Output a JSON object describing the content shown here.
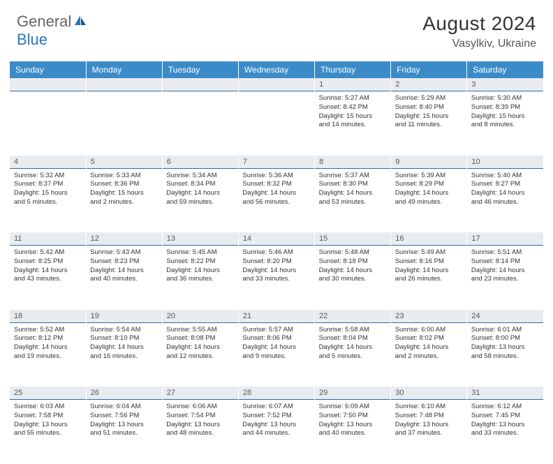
{
  "brand": {
    "part1": "General",
    "part2": "Blue"
  },
  "title": "August 2024",
  "location": "Vasylkiv, Ukraine",
  "colors": {
    "header_bg": "#3b8bc9",
    "daynum_bg": "#e9ecef",
    "border": "#2a6ea8",
    "brand_blue": "#2977b8",
    "text": "#333333"
  },
  "weekdays": [
    "Sunday",
    "Monday",
    "Tuesday",
    "Wednesday",
    "Thursday",
    "Friday",
    "Saturday"
  ],
  "weeks": [
    {
      "nums": [
        "",
        "",
        "",
        "",
        "1",
        "2",
        "3"
      ],
      "cells": [
        null,
        null,
        null,
        null,
        {
          "sunrise": "Sunrise: 5:27 AM",
          "sunset": "Sunset: 8:42 PM",
          "day1": "Daylight: 15 hours",
          "day2": "and 14 minutes."
        },
        {
          "sunrise": "Sunrise: 5:29 AM",
          "sunset": "Sunset: 8:40 PM",
          "day1": "Daylight: 15 hours",
          "day2": "and 11 minutes."
        },
        {
          "sunrise": "Sunrise: 5:30 AM",
          "sunset": "Sunset: 8:39 PM",
          "day1": "Daylight: 15 hours",
          "day2": "and 8 minutes."
        }
      ]
    },
    {
      "nums": [
        "4",
        "5",
        "6",
        "7",
        "8",
        "9",
        "10"
      ],
      "cells": [
        {
          "sunrise": "Sunrise: 5:32 AM",
          "sunset": "Sunset: 8:37 PM",
          "day1": "Daylight: 15 hours",
          "day2": "and 5 minutes."
        },
        {
          "sunrise": "Sunrise: 5:33 AM",
          "sunset": "Sunset: 8:36 PM",
          "day1": "Daylight: 15 hours",
          "day2": "and 2 minutes."
        },
        {
          "sunrise": "Sunrise: 5:34 AM",
          "sunset": "Sunset: 8:34 PM",
          "day1": "Daylight: 14 hours",
          "day2": "and 59 minutes."
        },
        {
          "sunrise": "Sunrise: 5:36 AM",
          "sunset": "Sunset: 8:32 PM",
          "day1": "Daylight: 14 hours",
          "day2": "and 56 minutes."
        },
        {
          "sunrise": "Sunrise: 5:37 AM",
          "sunset": "Sunset: 8:30 PM",
          "day1": "Daylight: 14 hours",
          "day2": "and 53 minutes."
        },
        {
          "sunrise": "Sunrise: 5:39 AM",
          "sunset": "Sunset: 8:29 PM",
          "day1": "Daylight: 14 hours",
          "day2": "and 49 minutes."
        },
        {
          "sunrise": "Sunrise: 5:40 AM",
          "sunset": "Sunset: 8:27 PM",
          "day1": "Daylight: 14 hours",
          "day2": "and 46 minutes."
        }
      ]
    },
    {
      "nums": [
        "11",
        "12",
        "13",
        "14",
        "15",
        "16",
        "17"
      ],
      "cells": [
        {
          "sunrise": "Sunrise: 5:42 AM",
          "sunset": "Sunset: 8:25 PM",
          "day1": "Daylight: 14 hours",
          "day2": "and 43 minutes."
        },
        {
          "sunrise": "Sunrise: 5:43 AM",
          "sunset": "Sunset: 8:23 PM",
          "day1": "Daylight: 14 hours",
          "day2": "and 40 minutes."
        },
        {
          "sunrise": "Sunrise: 5:45 AM",
          "sunset": "Sunset: 8:22 PM",
          "day1": "Daylight: 14 hours",
          "day2": "and 36 minutes."
        },
        {
          "sunrise": "Sunrise: 5:46 AM",
          "sunset": "Sunset: 8:20 PM",
          "day1": "Daylight: 14 hours",
          "day2": "and 33 minutes."
        },
        {
          "sunrise": "Sunrise: 5:48 AM",
          "sunset": "Sunset: 8:18 PM",
          "day1": "Daylight: 14 hours",
          "day2": "and 30 minutes."
        },
        {
          "sunrise": "Sunrise: 5:49 AM",
          "sunset": "Sunset: 8:16 PM",
          "day1": "Daylight: 14 hours",
          "day2": "and 26 minutes."
        },
        {
          "sunrise": "Sunrise: 5:51 AM",
          "sunset": "Sunset: 8:14 PM",
          "day1": "Daylight: 14 hours",
          "day2": "and 23 minutes."
        }
      ]
    },
    {
      "nums": [
        "18",
        "19",
        "20",
        "21",
        "22",
        "23",
        "24"
      ],
      "cells": [
        {
          "sunrise": "Sunrise: 5:52 AM",
          "sunset": "Sunset: 8:12 PM",
          "day1": "Daylight: 14 hours",
          "day2": "and 19 minutes."
        },
        {
          "sunrise": "Sunrise: 5:54 AM",
          "sunset": "Sunset: 8:10 PM",
          "day1": "Daylight: 14 hours",
          "day2": "and 16 minutes."
        },
        {
          "sunrise": "Sunrise: 5:55 AM",
          "sunset": "Sunset: 8:08 PM",
          "day1": "Daylight: 14 hours",
          "day2": "and 12 minutes."
        },
        {
          "sunrise": "Sunrise: 5:57 AM",
          "sunset": "Sunset: 8:06 PM",
          "day1": "Daylight: 14 hours",
          "day2": "and 9 minutes."
        },
        {
          "sunrise": "Sunrise: 5:58 AM",
          "sunset": "Sunset: 8:04 PM",
          "day1": "Daylight: 14 hours",
          "day2": "and 5 minutes."
        },
        {
          "sunrise": "Sunrise: 6:00 AM",
          "sunset": "Sunset: 8:02 PM",
          "day1": "Daylight: 14 hours",
          "day2": "and 2 minutes."
        },
        {
          "sunrise": "Sunrise: 6:01 AM",
          "sunset": "Sunset: 8:00 PM",
          "day1": "Daylight: 13 hours",
          "day2": "and 58 minutes."
        }
      ]
    },
    {
      "nums": [
        "25",
        "26",
        "27",
        "28",
        "29",
        "30",
        "31"
      ],
      "cells": [
        {
          "sunrise": "Sunrise: 6:03 AM",
          "sunset": "Sunset: 7:58 PM",
          "day1": "Daylight: 13 hours",
          "day2": "and 55 minutes."
        },
        {
          "sunrise": "Sunrise: 6:04 AM",
          "sunset": "Sunset: 7:56 PM",
          "day1": "Daylight: 13 hours",
          "day2": "and 51 minutes."
        },
        {
          "sunrise": "Sunrise: 6:06 AM",
          "sunset": "Sunset: 7:54 PM",
          "day1": "Daylight: 13 hours",
          "day2": "and 48 minutes."
        },
        {
          "sunrise": "Sunrise: 6:07 AM",
          "sunset": "Sunset: 7:52 PM",
          "day1": "Daylight: 13 hours",
          "day2": "and 44 minutes."
        },
        {
          "sunrise": "Sunrise: 6:09 AM",
          "sunset": "Sunset: 7:50 PM",
          "day1": "Daylight: 13 hours",
          "day2": "and 40 minutes."
        },
        {
          "sunrise": "Sunrise: 6:10 AM",
          "sunset": "Sunset: 7:48 PM",
          "day1": "Daylight: 13 hours",
          "day2": "and 37 minutes."
        },
        {
          "sunrise": "Sunrise: 6:12 AM",
          "sunset": "Sunset: 7:45 PM",
          "day1": "Daylight: 13 hours",
          "day2": "and 33 minutes."
        }
      ]
    }
  ]
}
